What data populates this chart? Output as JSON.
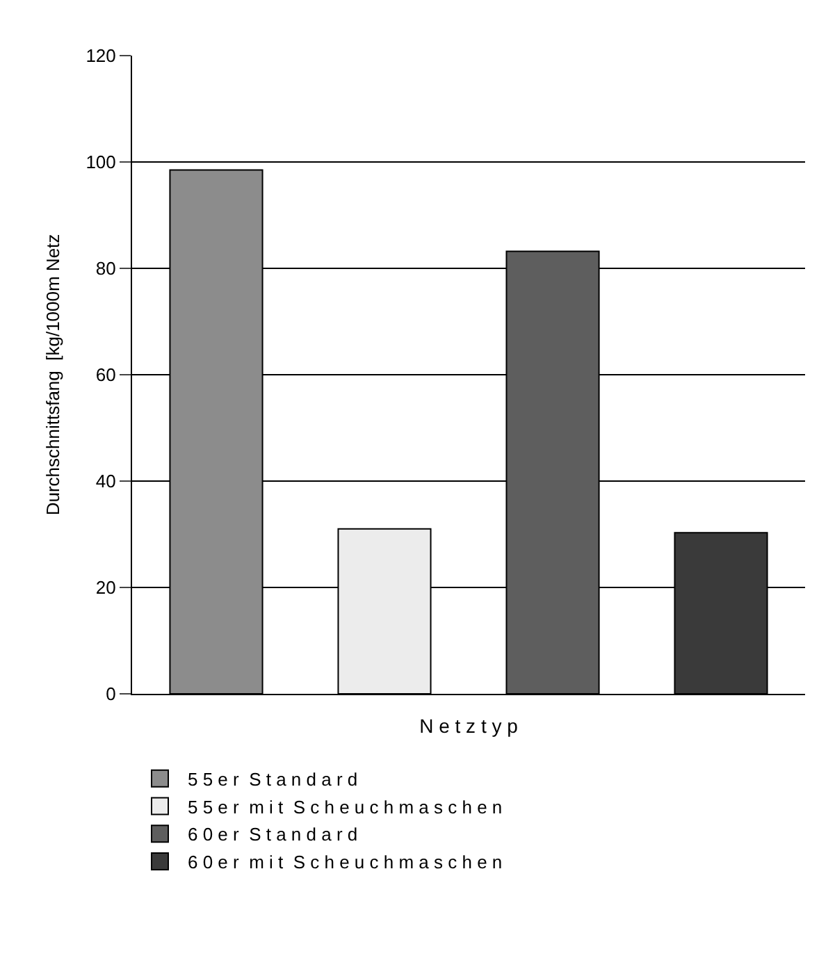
{
  "chart_data": {
    "type": "bar",
    "xlabel": "N e t z t y p",
    "ylabel": "Durchschnittsfang  [kg/1000m Netz",
    "categories": [
      null,
      null,
      null,
      null
    ],
    "series": [
      {
        "name": "5 5 e r  S t a n d a r d",
        "color": "#8c8c8c",
        "values": [
          98.5,
          null,
          null,
          null
        ]
      },
      {
        "name": "5 5 e r  m i t  S c h e u c h m a s c h e n",
        "color": "#ececec",
        "values": [
          null,
          31.0,
          null,
          null
        ]
      },
      {
        "name": "6 0 e r  S t a n d a r d",
        "color": "#5e5e5e",
        "values": [
          null,
          null,
          83.2,
          null
        ]
      },
      {
        "name": "6 0 e r  m i t  S c h e u c h m a s c h e n",
        "color": "#3a3a3a",
        "values": [
          null,
          null,
          null,
          30.3
        ]
      }
    ],
    "ylim": [
      0,
      120
    ],
    "yticks": [
      0,
      20,
      40,
      60,
      80,
      100,
      120
    ],
    "grid": "y",
    "legend": "bottom"
  }
}
